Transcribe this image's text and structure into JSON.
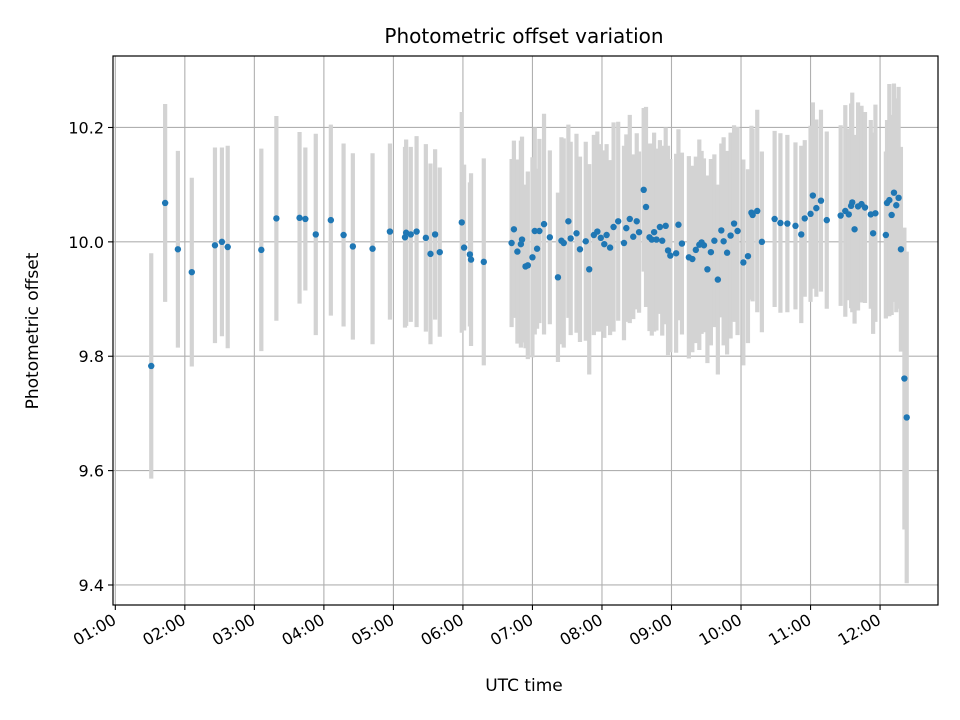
{
  "chart_data": {
    "type": "scatter",
    "title": "Photometric offset variation",
    "xlabel": "UTC time",
    "ylabel": "Photometric offset",
    "xlim": [
      "00:58",
      "12:50"
    ],
    "ylim": [
      9.365,
      10.325
    ],
    "grid": true,
    "x_ticks": [
      "01:00",
      "02:00",
      "03:00",
      "04:00",
      "05:00",
      "06:00",
      "07:00",
      "08:00",
      "09:00",
      "10:00",
      "11:00",
      "12:00"
    ],
    "y_ticks": [
      "9.4",
      "9.6",
      "9.8",
      "10.0",
      "10.2"
    ],
    "colors": {
      "point": "#1f77b4",
      "errorbar": "#d3d3d3",
      "grid": "#b0b0b0",
      "axis": "#000000"
    },
    "series": [
      {
        "x": [
          "01:31",
          "01:43",
          "01:54",
          "02:06",
          "02:26",
          "02:32",
          "02:37",
          "03:06",
          "03:19",
          "03:39",
          "03:44",
          "03:53",
          "04:06",
          "04:17",
          "04:25",
          "04:42",
          "04:57",
          "05:10",
          "05:11",
          "05:15",
          "05:20",
          "05:28",
          "05:32",
          "05:36",
          "05:40",
          "05:59",
          "06:01",
          "06:06",
          "06:07",
          "06:18",
          "06:42",
          "06:44",
          "06:47",
          "06:50",
          "06:51",
          "06:54",
          "06:56",
          "07:00",
          "07:02",
          "07:04",
          "07:06",
          "07:10",
          "07:15",
          "07:22",
          "07:25",
          "07:27",
          "07:31",
          "07:33",
          "07:38",
          "07:41",
          "07:46",
          "07:49",
          "07:53",
          "07:56",
          "07:59",
          "08:02",
          "08:04",
          "08:07",
          "08:10",
          "08:14",
          "08:19",
          "08:21",
          "08:24",
          "08:27",
          "08:30",
          "08:32",
          "08:36",
          "08:38",
          "08:41",
          "08:43",
          "08:45",
          "08:47",
          "08:50",
          "08:52",
          "08:55",
          "08:57",
          "08:59",
          "09:04",
          "09:06",
          "09:09",
          "09:15",
          "09:18",
          "09:21",
          "09:24",
          "09:26",
          "09:28",
          "09:31",
          "09:34",
          "09:37",
          "09:40",
          "09:43",
          "09:45",
          "09:48",
          "09:51",
          "09:54",
          "09:57",
          "10:02",
          "10:06",
          "10:09",
          "10:10",
          "10:14",
          "10:18",
          "10:29",
          "10:34",
          "10:40",
          "10:47",
          "10:52",
          "10:55",
          "11:00",
          "11:02",
          "11:05",
          "11:09",
          "11:14",
          "11:26",
          "11:30",
          "11:33",
          "11:35",
          "11:36",
          "11:38",
          "11:41",
          "11:44",
          "11:47",
          "11:52",
          "11:54",
          "11:56",
          "12:05",
          "12:06",
          "12:08",
          "12:10",
          "12:12",
          "12:14",
          "12:16",
          "12:18",
          "12:21",
          "12:23"
        ],
        "y": [
          9.783,
          10.068,
          9.987,
          9.947,
          9.994,
          10.0,
          9.991,
          9.986,
          10.041,
          10.042,
          10.04,
          10.013,
          10.038,
          10.012,
          9.992,
          9.988,
          10.018,
          10.008,
          10.016,
          10.013,
          10.018,
          10.007,
          9.979,
          10.013,
          9.982,
          10.034,
          9.99,
          9.978,
          9.969,
          9.965,
          9.998,
          10.022,
          9.983,
          9.996,
          10.004,
          9.957,
          9.959,
          9.973,
          10.019,
          9.988,
          10.019,
          10.031,
          10.008,
          9.938,
          10.002,
          9.998,
          10.036,
          10.006,
          10.015,
          9.987,
          10.001,
          9.952,
          10.012,
          10.018,
          10.007,
          9.996,
          10.012,
          9.99,
          10.026,
          10.036,
          9.998,
          10.024,
          10.04,
          10.009,
          10.036,
          10.017,
          10.091,
          10.061,
          10.008,
          10.004,
          10.017,
          10.004,
          10.026,
          10.002,
          10.028,
          9.985,
          9.976,
          9.98,
          10.03,
          9.997,
          9.973,
          9.97,
          9.986,
          9.995,
          9.999,
          9.994,
          9.952,
          9.982,
          10.002,
          9.934,
          10.02,
          10.001,
          9.981,
          10.011,
          10.032,
          10.019,
          9.964,
          9.975,
          10.051,
          10.047,
          10.054,
          10.0,
          10.04,
          10.033,
          10.032,
          10.028,
          10.013,
          10.041,
          10.049,
          10.081,
          10.059,
          10.072,
          10.038,
          10.046,
          10.054,
          10.048,
          10.063,
          10.069,
          10.022,
          10.062,
          10.066,
          10.06,
          10.048,
          10.015,
          10.05,
          10.012,
          10.068,
          10.073,
          10.047,
          10.086,
          10.064,
          10.077,
          9.987,
          9.761,
          9.693
        ],
        "yerr": [
          0.197,
          0.173,
          0.172,
          0.165,
          0.171,
          0.165,
          0.177,
          0.177,
          0.179,
          0.15,
          0.125,
          0.176,
          0.167,
          0.16,
          0.163,
          0.167,
          0.154,
          0.158,
          0.163,
          0.153,
          0.167,
          0.164,
          0.158,
          0.149,
          0.148,
          0.193,
          0.145,
          0.126,
          0.151,
          0.181,
          0.147,
          0.155,
          0.161,
          0.181,
          0.18,
          0.143,
          0.164,
          0.175,
          0.181,
          0.14,
          0.161,
          0.193,
          0.152,
          0.148,
          0.181,
          0.183,
          0.169,
          0.169,
          0.174,
          0.162,
          0.174,
          0.184,
          0.175,
          0.175,
          0.164,
          0.164,
          0.159,
          0.153,
          0.183,
          0.174,
          0.17,
          0.164,
          0.182,
          0.144,
          0.154,
          0.141,
          0.143,
          0.175,
          0.164,
          0.168,
          0.174,
          0.159,
          0.152,
          0.166,
          0.172,
          0.183,
          0.169,
          0.174,
          0.167,
          0.159,
          0.177,
          0.163,
          0.163,
          0.184,
          0.16,
          0.152,
          0.164,
          0.163,
          0.151,
          0.166,
          0.152,
          0.182,
          0.178,
          0.18,
          0.172,
          0.182,
          0.18,
          0.152,
          0.152,
          0.151,
          0.177,
          0.158,
          0.154,
          0.157,
          0.155,
          0.146,
          0.155,
          0.137,
          0.154,
          0.163,
          0.155,
          0.159,
          0.155,
          0.158,
          0.185,
          0.15,
          0.179,
          0.192,
          0.165,
          0.182,
          0.172,
          0.167,
          0.165,
          0.176,
          0.19,
          0.146,
          0.145,
          0.203,
          0.175,
          0.191,
          0.187,
          0.194,
          0.179,
          0.264,
          0.29
        ]
      }
    ]
  }
}
